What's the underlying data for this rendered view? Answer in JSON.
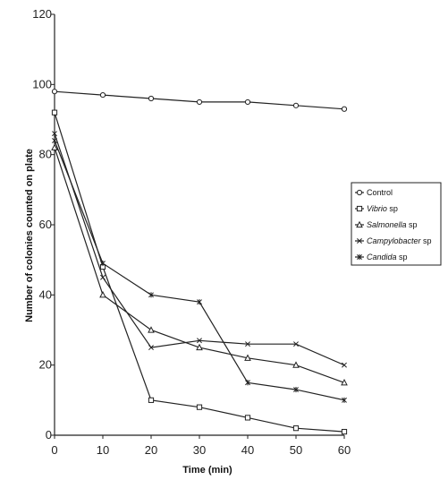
{
  "chart_data": {
    "type": "line",
    "xlabel": "Time (min)",
    "ylabel": "Number of colonies counted on plate",
    "xlim": [
      0,
      60
    ],
    "ylim": [
      0,
      120
    ],
    "x_ticks": [
      "0",
      "10",
      "20",
      "30",
      "40",
      "50",
      "60"
    ],
    "y_ticks": [
      "0",
      "20",
      "40",
      "60",
      "80",
      "100",
      "120"
    ],
    "grid": false,
    "legend_position": "right",
    "x": [
      0,
      10,
      20,
      30,
      40,
      50,
      60
    ],
    "series": [
      {
        "name": "Control",
        "italic": false,
        "suffix": "",
        "marker": "circle",
        "values": [
          98,
          97,
          96,
          95,
          95,
          94,
          93
        ]
      },
      {
        "name": "Vibrio",
        "italic": true,
        "suffix": " sp",
        "marker": "square",
        "values": [
          92,
          48,
          10,
          8,
          5,
          2,
          1
        ]
      },
      {
        "name": "Salmonella",
        "italic": true,
        "suffix": " sp",
        "marker": "triangle",
        "values": [
          82,
          40,
          30,
          25,
          22,
          20,
          15
        ]
      },
      {
        "name": "Campylobacter",
        "italic": true,
        "suffix": " sp",
        "marker": "x",
        "values": [
          86,
          45,
          25,
          27,
          26,
          26,
          20
        ]
      },
      {
        "name": "Candida",
        "italic": true,
        "suffix": " sp",
        "marker": "star",
        "values": [
          84,
          49,
          40,
          38,
          15,
          13,
          10
        ]
      }
    ]
  }
}
